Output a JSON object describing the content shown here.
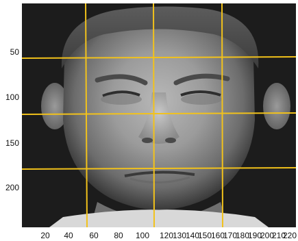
{
  "image": {
    "subject": "face-photo",
    "palette": {
      "background": "#1c1c1c",
      "skin_mid": "#8f8f8f",
      "grid_line": "#f2c21b"
    }
  },
  "axes": {
    "x_ticks": [
      "20",
      "40",
      "60",
      "80",
      "100",
      "120",
      "130",
      "140",
      "150",
      "160",
      "170",
      "180",
      "190",
      "200",
      "210",
      "220"
    ],
    "y_ticks": [
      "50",
      "100",
      "150",
      "200"
    ]
  },
  "grid": {
    "color": "#f2c21b",
    "vertical_count": 3,
    "horizontal_count": 3
  }
}
